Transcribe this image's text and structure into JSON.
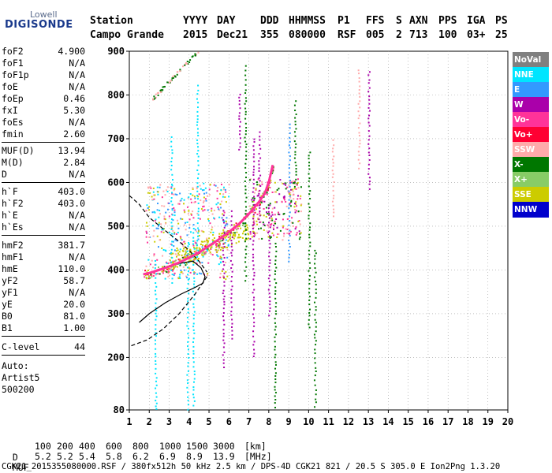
{
  "logo": {
    "line1": "Lowell",
    "line2": "DIGISONDE"
  },
  "header": {
    "labels": [
      "Station",
      "YYYY",
      "DAY",
      "DDD",
      "HHMMSS",
      "P1",
      "FFS",
      "S",
      "AXN",
      "PPS",
      "IGA",
      "PS"
    ],
    "values": [
      "Campo Grande",
      "2015",
      "Dec21",
      "355",
      "080000",
      "RSF",
      "005",
      "2",
      "713",
      "100",
      "03+",
      "25"
    ]
  },
  "params": {
    "group1": [
      {
        "name": "foF2",
        "value": "4.900"
      },
      {
        "name": "foF1",
        "value": "N/A"
      },
      {
        "name": "foF1p",
        "value": "N/A"
      },
      {
        "name": "foE",
        "value": "N/A"
      },
      {
        "name": "foEp",
        "value": "0.46"
      },
      {
        "name": "fxI",
        "value": "5.30"
      },
      {
        "name": "foEs",
        "value": "N/A"
      },
      {
        "name": "fmin",
        "value": "2.60"
      }
    ],
    "group2": [
      {
        "name": "MUF(D)",
        "value": "13.94"
      },
      {
        "name": "M(D)",
        "value": "2.84"
      },
      {
        "name": "D",
        "value": "N/A"
      }
    ],
    "group3": [
      {
        "name": "h`F",
        "value": "403.0"
      },
      {
        "name": "h`F2",
        "value": "403.0"
      },
      {
        "name": "h`E",
        "value": "N/A"
      },
      {
        "name": "h`Es",
        "value": "N/A"
      }
    ],
    "group4": [
      {
        "name": "hmF2",
        "value": "381.7"
      },
      {
        "name": "hmF1",
        "value": "N/A"
      },
      {
        "name": "hmE",
        "value": "110.0"
      },
      {
        "name": "yF2",
        "value": "58.7"
      },
      {
        "name": "yF1",
        "value": "N/A"
      },
      {
        "name": "yE",
        "value": "20.0"
      },
      {
        "name": "B0",
        "value": "81.0"
      },
      {
        "name": "B1",
        "value": "1.00"
      }
    ],
    "group5": [
      {
        "name": "C-level",
        "value": "44"
      }
    ],
    "auto": [
      "Auto:",
      "Artist5",
      "500200"
    ]
  },
  "legend": [
    {
      "label": "NoVal",
      "bg": "#808080",
      "fg": "#ffffff"
    },
    {
      "label": "NNE",
      "bg": "#00e5ff",
      "fg": "#ffffff"
    },
    {
      "label": "E",
      "bg": "#3399ff",
      "fg": "#ffffff"
    },
    {
      "label": "W",
      "bg": "#aa00aa",
      "fg": "#ffffff"
    },
    {
      "label": "Vo-",
      "bg": "#ff3399",
      "fg": "#ffffff"
    },
    {
      "label": "Vo+",
      "bg": "#ff0033",
      "fg": "#ffffff"
    },
    {
      "label": "SSW",
      "bg": "#ffaaaa",
      "fg": "#ffffff"
    },
    {
      "label": "X-",
      "bg": "#007700",
      "fg": "#ffffff"
    },
    {
      "label": "X+",
      "bg": "#88cc66",
      "fg": "#ffffff"
    },
    {
      "label": "SSE",
      "bg": "#cccc00",
      "fg": "#ffffff"
    },
    {
      "label": "NNW",
      "bg": "#0000cc",
      "fg": "#ffffff"
    }
  ],
  "footer": {
    "d_label": "D",
    "d_values": [
      "100",
      "200",
      "400",
      "600",
      "800",
      "1000",
      "1500",
      "3000"
    ],
    "d_unit": "[km]",
    "muf_label": "MUF",
    "muf_values": [
      "5.2",
      "5.2",
      "5.4",
      "5.8",
      "6.2",
      "6.9",
      "8.9",
      "13.9"
    ],
    "muf_unit": "[MHz]",
    "file_line": "CGK21_2015355080000.RSF / 380fx512h 50 kHz 2.5 km / DPS-4D CGK21 821 / 20.5 S 305.0 E Ion2Png 1.3.20"
  },
  "chart_data": {
    "type": "scatter",
    "xlim": [
      1,
      20
    ],
    "ylim": [
      80,
      900
    ],
    "xticks": [
      1,
      2,
      3,
      4,
      5,
      6,
      7,
      8,
      9,
      10,
      11,
      12,
      13,
      14,
      15,
      16,
      17,
      18,
      19,
      20
    ],
    "yticks": [
      80,
      200,
      300,
      400,
      500,
      600,
      700,
      800,
      900
    ],
    "trace": {
      "name": "Vo-",
      "color": "#ff3399",
      "x": [
        1.7,
        2.0,
        2.5,
        3.0,
        3.5,
        4.0,
        4.5,
        5.0,
        5.5,
        6.0,
        6.5,
        7.0,
        7.5,
        7.8,
        8.0,
        8.2
      ],
      "y": [
        390,
        393,
        400,
        408,
        417,
        428,
        440,
        455,
        470,
        487,
        505,
        528,
        555,
        575,
        600,
        640
      ]
    },
    "profile_solid": {
      "x": [
        1.7,
        2.5,
        3.5,
        4.2,
        4.6,
        4.8,
        4.7,
        4.3,
        3.6,
        2.8,
        2.0,
        1.5
      ],
      "y": [
        390,
        400,
        415,
        420,
        405,
        385,
        370,
        360,
        345,
        325,
        300,
        280
      ]
    },
    "profile_dashed_upper": {
      "x": [
        1.0,
        1.5,
        2.0,
        2.8,
        3.5,
        4.0,
        4.5,
        4.9
      ],
      "y": [
        570,
        550,
        520,
        490,
        465,
        445,
        420,
        395
      ]
    },
    "profile_dashed_lower": {
      "x": [
        4.9,
        4.3,
        3.5,
        2.7,
        1.9,
        1.0
      ],
      "y": [
        385,
        345,
        300,
        265,
        240,
        225
      ]
    }
  }
}
